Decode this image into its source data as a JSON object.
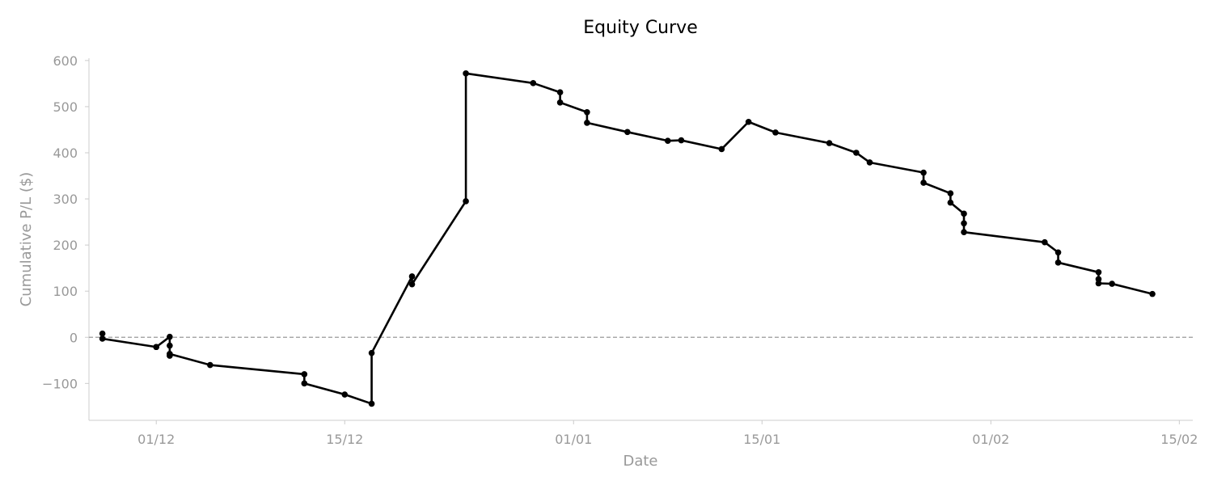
{
  "chart_data": {
    "type": "line",
    "title": "Equity Curve",
    "xlabel": "Date",
    "ylabel": "Cumulative P/L ($)",
    "x_type": "date",
    "x_year_start": "2023",
    "xlim": [
      "2023-11-26",
      "2024-02-16"
    ],
    "ylim": [
      -180,
      605
    ],
    "x_ticks": [
      {
        "date": "2023-12-01",
        "label": "01/12"
      },
      {
        "date": "2023-12-15",
        "label": "15/12"
      },
      {
        "date": "2024-01-01",
        "label": "01/01"
      },
      {
        "date": "2024-01-15",
        "label": "15/01"
      },
      {
        "date": "2024-02-01",
        "label": "01/02"
      },
      {
        "date": "2024-02-15",
        "label": "15/02"
      }
    ],
    "y_ticks": [
      {
        "value": 600,
        "label": "600"
      },
      {
        "value": 500,
        "label": "500"
      },
      {
        "value": 400,
        "label": "400"
      },
      {
        "value": 300,
        "label": "300"
      },
      {
        "value": 200,
        "label": "200"
      },
      {
        "value": 100,
        "label": "100"
      },
      {
        "value": 0,
        "label": "0"
      },
      {
        "value": -100,
        "label": "−100"
      }
    ],
    "reference_line": {
      "value": 0,
      "style": "dashed",
      "color": "#999999"
    },
    "grid": false,
    "legend": "none",
    "series": [
      {
        "color": "#000000",
        "points": [
          {
            "x": "2023-11-27",
            "y": 8
          },
          {
            "x": "2023-11-27",
            "y": -3
          },
          {
            "x": "2023-12-01",
            "y": -21
          },
          {
            "x": "2023-12-01",
            "y": -21
          },
          {
            "x": "2023-12-02",
            "y": 1
          },
          {
            "x": "2023-12-02",
            "y": -18
          },
          {
            "x": "2023-12-02",
            "y": -40
          },
          {
            "x": "2023-12-02",
            "y": -36
          },
          {
            "x": "2023-12-05",
            "y": -60
          },
          {
            "x": "2023-12-12",
            "y": -80
          },
          {
            "x": "2023-12-12",
            "y": -100
          },
          {
            "x": "2023-12-15",
            "y": -124
          },
          {
            "x": "2023-12-17",
            "y": -144
          },
          {
            "x": "2023-12-17",
            "y": -34
          },
          {
            "x": "2023-12-20",
            "y": 132
          },
          {
            "x": "2023-12-20",
            "y": 115
          },
          {
            "x": "2023-12-24",
            "y": 295
          },
          {
            "x": "2023-12-24",
            "y": 572
          },
          {
            "x": "2023-12-29",
            "y": 551
          },
          {
            "x": "2023-12-31",
            "y": 531
          },
          {
            "x": "2023-12-31",
            "y": 509
          },
          {
            "x": "2024-01-02",
            "y": 488
          },
          {
            "x": "2024-01-02",
            "y": 465
          },
          {
            "x": "2024-01-05",
            "y": 445
          },
          {
            "x": "2024-01-08",
            "y": 426
          },
          {
            "x": "2024-01-09",
            "y": 427
          },
          {
            "x": "2024-01-12",
            "y": 408
          },
          {
            "x": "2024-01-14",
            "y": 467
          },
          {
            "x": "2024-01-16",
            "y": 444
          },
          {
            "x": "2024-01-20",
            "y": 421
          },
          {
            "x": "2024-01-22",
            "y": 400
          },
          {
            "x": "2024-01-23",
            "y": 379
          },
          {
            "x": "2024-01-27",
            "y": 357
          },
          {
            "x": "2024-01-27",
            "y": 335
          },
          {
            "x": "2024-01-29",
            "y": 312
          },
          {
            "x": "2024-01-29",
            "y": 292
          },
          {
            "x": "2024-01-30",
            "y": 268
          },
          {
            "x": "2024-01-30",
            "y": 247
          },
          {
            "x": "2024-01-30",
            "y": 228
          },
          {
            "x": "2024-02-05",
            "y": 206
          },
          {
            "x": "2024-02-06",
            "y": 184
          },
          {
            "x": "2024-02-06",
            "y": 162
          },
          {
            "x": "2024-02-09",
            "y": 141
          },
          {
            "x": "2024-02-09",
            "y": 126
          },
          {
            "x": "2024-02-09",
            "y": 117
          },
          {
            "x": "2024-02-10",
            "y": 116
          },
          {
            "x": "2024-02-13",
            "y": 94
          }
        ]
      }
    ]
  }
}
